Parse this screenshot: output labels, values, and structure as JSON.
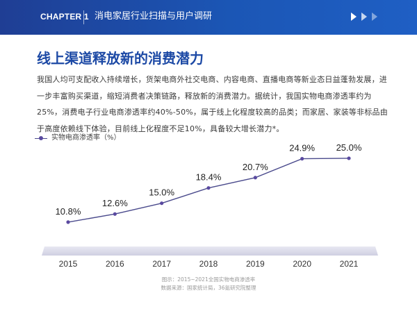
{
  "header": {
    "chapter": "CHAPTER 1",
    "title": "消电家居行业扫描与用户调研",
    "nav_icons": [
      "play-arrow-icon",
      "play-arrow-icon",
      "play-arrow-icon"
    ]
  },
  "section": {
    "title": "线上渠道释放新的消费潜力",
    "paragraph": "我国人均可支配收入持续增长，货架电商外社交电商、内容电商、直播电商等新业态日益蓬勃发展，进一步丰富购买渠道，缩短消费者决策链路，释放新的消费潜力。据统计，我国实物电商渗透率约为25%，消费电子行业电商渗透率约40%-50%，属于线上化程度较高的品类；而家居、家装等非标品由于高度依赖线下体验，目前线上化程度不足10%，具备较大增长潜力*。"
  },
  "chart_data": {
    "type": "line",
    "legend": "实物电商渗透率（%）",
    "legend_position": "top-left",
    "categories": [
      "2015",
      "2016",
      "2017",
      "2018",
      "2019",
      "2020",
      "2021"
    ],
    "series": [
      {
        "name": "实物电商渗透率（%）",
        "values": [
          10.8,
          12.6,
          15.0,
          18.4,
          20.7,
          24.9,
          25.0
        ]
      }
    ],
    "data_labels": [
      "10.8%",
      "12.6%",
      "15.0%",
      "18.4%",
      "20.7%",
      "24.9%",
      "25.0%"
    ],
    "ylim": [
      8,
      27
    ],
    "grid": false,
    "line_color": "#4a4a8c",
    "marker_color": "#5a4aa0"
  },
  "captions": {
    "figure": "图示：2015~2021全国实物电商渗透率",
    "source": "数据来源：国家统计局，36氪研究院整理"
  }
}
